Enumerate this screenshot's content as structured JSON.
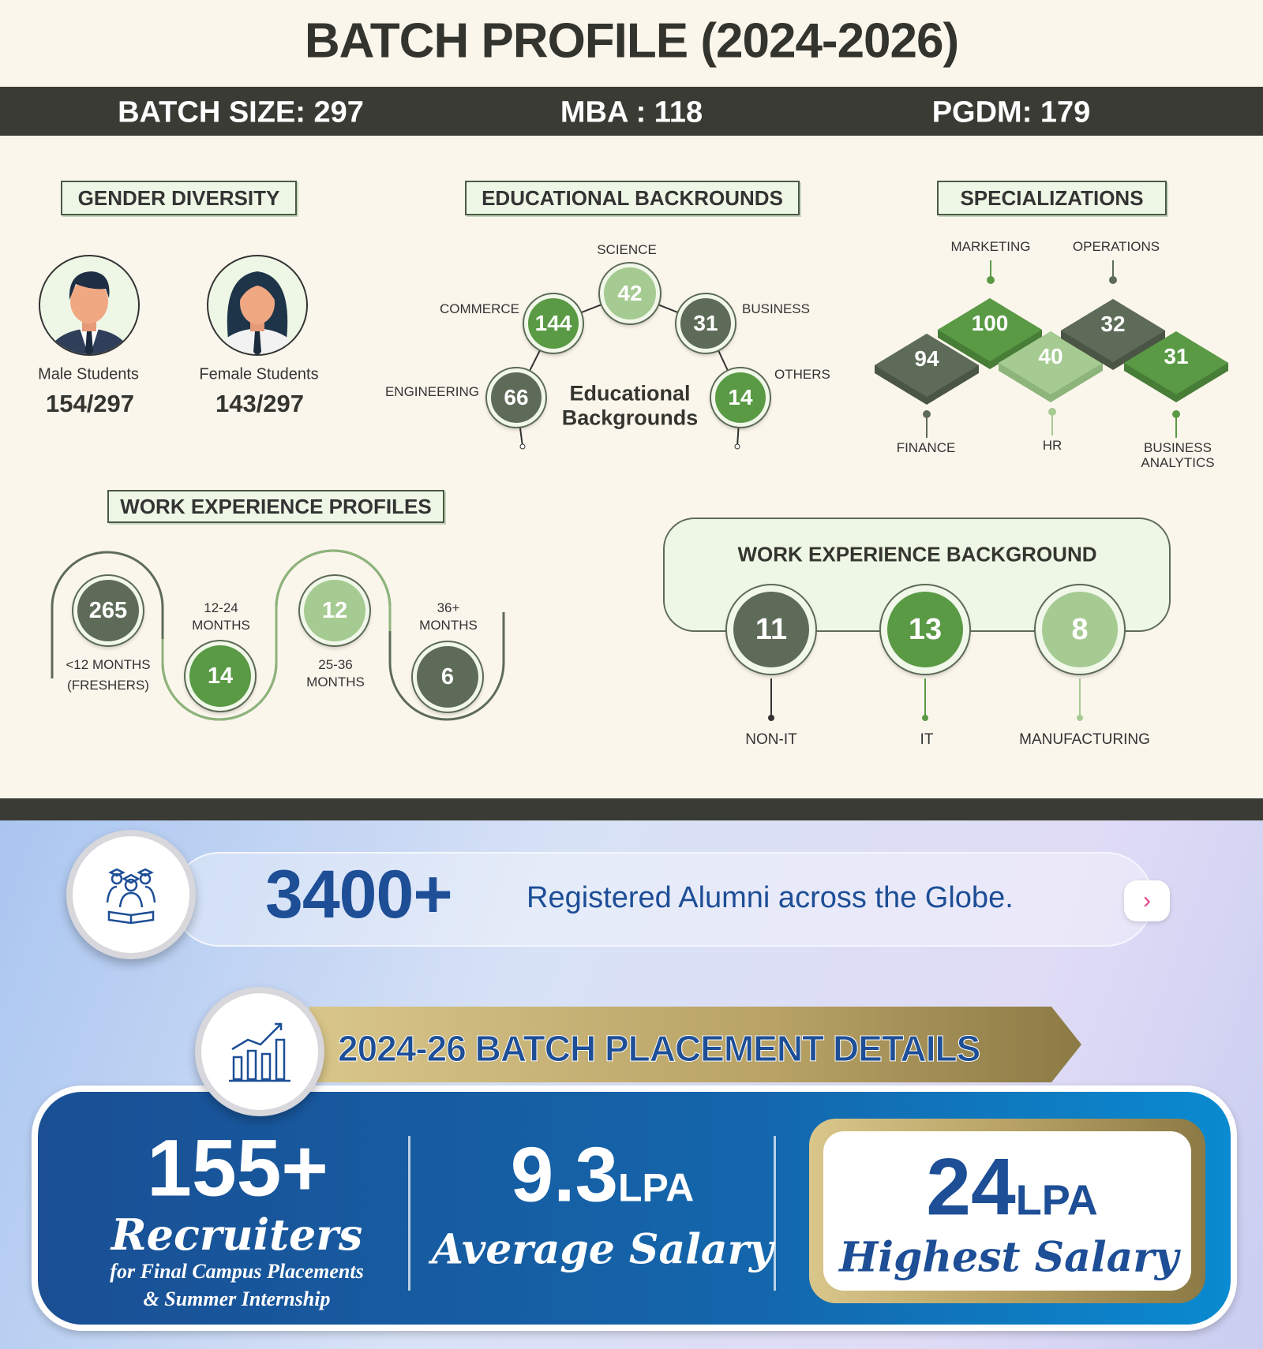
{
  "title": "BATCH PROFILE (2024-2026)",
  "summary": {
    "batch_size": "BATCH SIZE: 297",
    "mba": "MBA : 118",
    "pgdm": "PGDM: 179"
  },
  "gender": {
    "heading": "GENDER DIVERSITY",
    "male_label": "Male Students",
    "male_value": "154/297",
    "female_label": "Female Students",
    "female_value": "143/297"
  },
  "education": {
    "heading": "EDUCATIONAL BACKROUNDS",
    "center_line1": "Educational",
    "center_line2": "Backgrounds",
    "items": [
      {
        "label": "SCIENCE",
        "value": "42"
      },
      {
        "label": "COMMERCE",
        "value": "144"
      },
      {
        "label": "BUSINESS",
        "value": "31"
      },
      {
        "label": "ENGINEERING",
        "value": "66"
      },
      {
        "label": "OTHERS",
        "value": "14"
      }
    ]
  },
  "specializations": {
    "heading": "SPECIALIZATIONS",
    "items": [
      {
        "label": "FINANCE",
        "value": "94"
      },
      {
        "label": "MARKETING",
        "value": "100"
      },
      {
        "label": "HR",
        "value": "40"
      },
      {
        "label": "OPERATIONS",
        "value": "32"
      },
      {
        "label": "BUSINESS ANALYTICS",
        "label1": "BUSINESS",
        "label2": "ANALYTICS",
        "value": "31"
      }
    ]
  },
  "work_profiles": {
    "heading": "WORK EXPERIENCE PROFILES",
    "items": [
      {
        "l1": "<12 MONTHS",
        "l2": "(FRESHERS)",
        "value": "265"
      },
      {
        "l1": "12-24",
        "l2": "MONTHS",
        "value": "14"
      },
      {
        "l1": "25-36",
        "l2": "MONTHS",
        "value": "12"
      },
      {
        "l1": "36+",
        "l2": "MONTHS",
        "value": "6"
      }
    ]
  },
  "work_background": {
    "heading": "WORK EXPERIENCE BACKGROUND",
    "items": [
      {
        "label": "NON-IT",
        "value": "11"
      },
      {
        "label": "IT",
        "value": "13"
      },
      {
        "label": "MANUFACTURING",
        "value": "8"
      }
    ]
  },
  "alumni": {
    "count": "3400+",
    "text": "Registered Alumni across the Globe.",
    "icon": "alumni-graduates-icon",
    "arrow": "›"
  },
  "placement": {
    "heading": "2024-26 BATCH PLACEMENT DETAILS",
    "icon": "bar-chart-growth-icon",
    "recruiters_value": "155+",
    "recruiters_label": "Recruiters",
    "recruiters_sub1": "for Final Campus Placements",
    "recruiters_sub2": "& Summer Internship",
    "avg_value": "9.3",
    "avg_unit": "LPA",
    "avg_label": "Average Salary",
    "high_value": "24",
    "high_unit": "LPA",
    "high_label": "Highest Salary"
  },
  "colors": {
    "dark_green": "#5e6b58",
    "green": "#5a9a45",
    "light_green": "#a6cb92",
    "band": "#3a3b34",
    "navy": "#1d4e96",
    "gold": "#b8a266"
  }
}
